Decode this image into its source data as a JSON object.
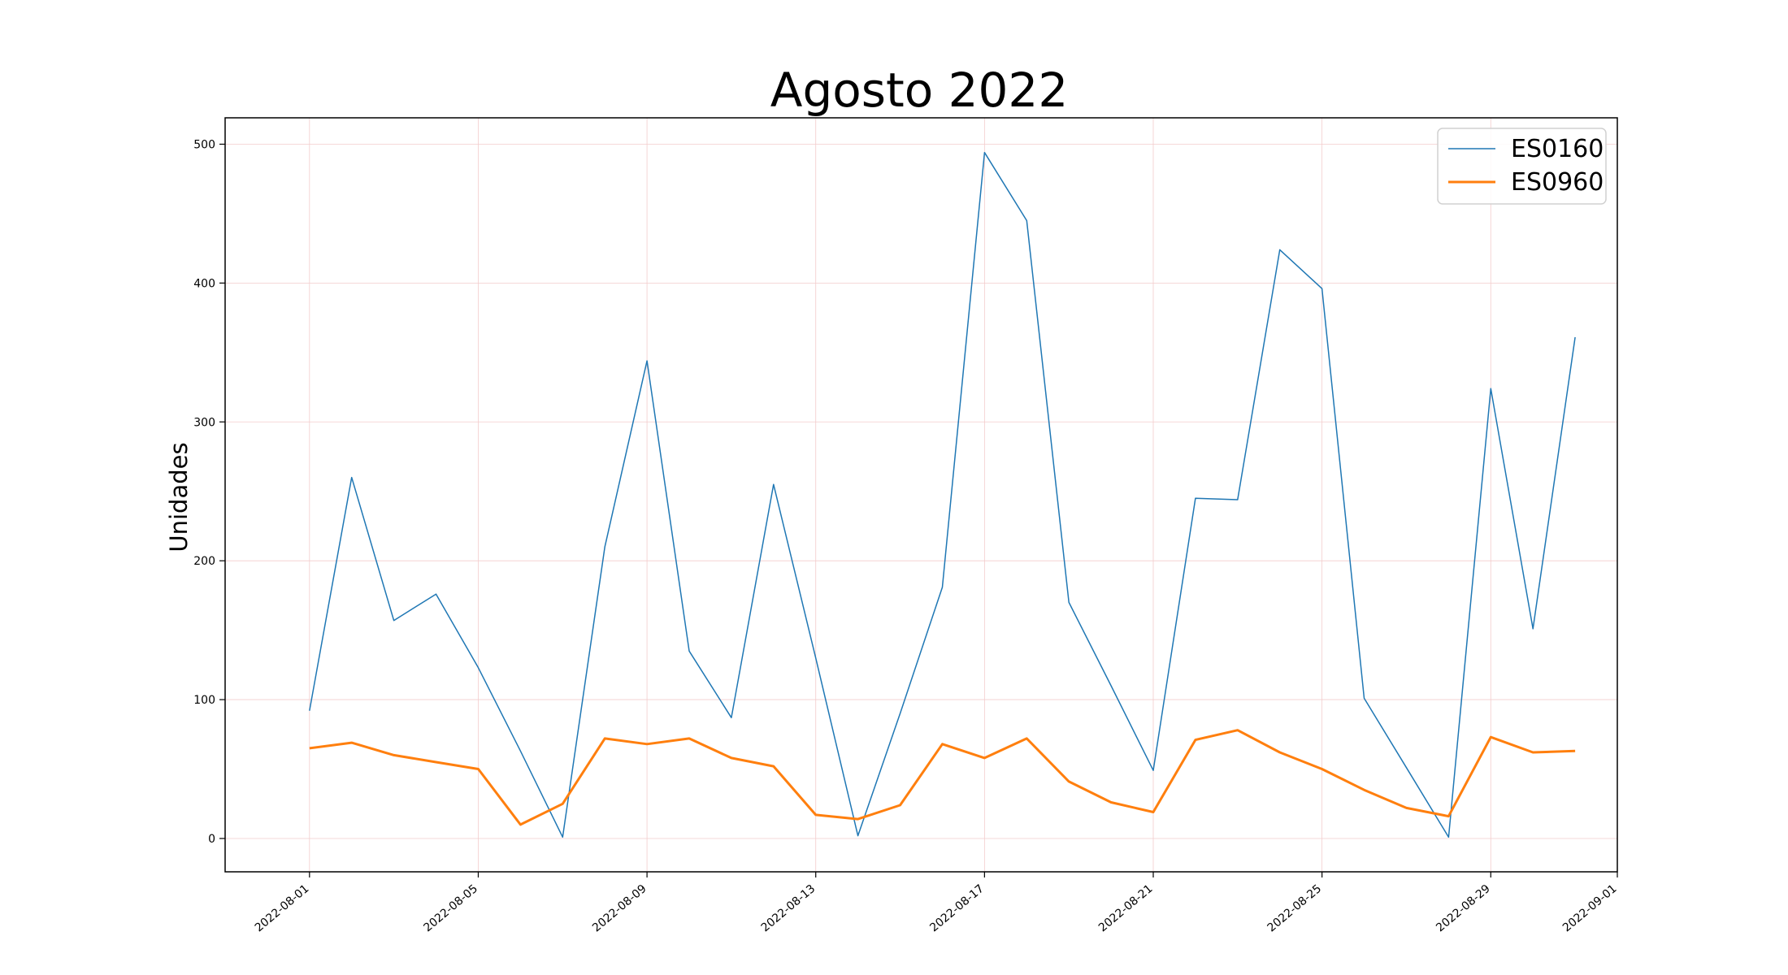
{
  "chart_data": {
    "type": "line",
    "title": "Agosto 2022",
    "xlabel": "",
    "ylabel": "Unidades",
    "x": [
      "2022-08-01",
      "2022-08-02",
      "2022-08-03",
      "2022-08-04",
      "2022-08-05",
      "2022-08-06",
      "2022-08-07",
      "2022-08-08",
      "2022-08-09",
      "2022-08-10",
      "2022-08-11",
      "2022-08-12",
      "2022-08-13",
      "2022-08-14",
      "2022-08-15",
      "2022-08-16",
      "2022-08-17",
      "2022-08-18",
      "2022-08-19",
      "2022-08-20",
      "2022-08-21",
      "2022-08-22",
      "2022-08-23",
      "2022-08-24",
      "2022-08-25",
      "2022-08-26",
      "2022-08-27",
      "2022-08-28",
      "2022-08-29",
      "2022-08-30",
      "2022-08-31"
    ],
    "series": [
      {
        "name": "ES0160",
        "color": "#1f77b4",
        "values": [
          92,
          260,
          157,
          176,
          123,
          63,
          1,
          210,
          344,
          135,
          87,
          255,
          130,
          2,
          90,
          181,
          494,
          445,
          170,
          110,
          49,
          245,
          244,
          424,
          396,
          101,
          51,
          1,
          324,
          151,
          361
        ]
      },
      {
        "name": "ES0960",
        "color": "#ff7f0e",
        "values": [
          65,
          69,
          60,
          55,
          50,
          10,
          25,
          72,
          68,
          72,
          58,
          52,
          17,
          14,
          24,
          68,
          58,
          72,
          41,
          26,
          19,
          71,
          78,
          62,
          50,
          35,
          22,
          16,
          73,
          62,
          63
        ]
      }
    ],
    "xticks": [
      "2022-08-01",
      "2022-08-05",
      "2022-08-09",
      "2022-08-13",
      "2022-08-17",
      "2022-08-21",
      "2022-08-25",
      "2022-08-29",
      "2022-09-01"
    ],
    "yticks": [
      "0",
      "100",
      "200",
      "300",
      "400",
      "500"
    ],
    "xlim": [
      "2022-07-30",
      "2022-09-01"
    ],
    "ylim": [
      -24,
      519
    ],
    "grid": true,
    "legend_position": "top-right"
  }
}
